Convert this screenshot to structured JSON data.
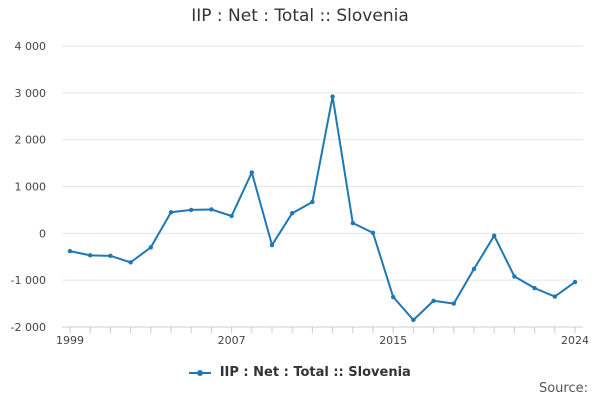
{
  "chart_data": {
    "type": "line",
    "title": "IIP : Net : Total :: Slovenia",
    "xlabel": "",
    "ylabel": "",
    "x": [
      1999,
      2000,
      2001,
      2002,
      2003,
      2004,
      2005,
      2006,
      2007,
      2008,
      2009,
      2010,
      2011,
      2012,
      2013,
      2014,
      2015,
      2016,
      2017,
      2018,
      2019,
      2020,
      2021,
      2022,
      2023,
      2024
    ],
    "series": [
      {
        "name": "IIP : Net : Total :: Slovenia",
        "color": "#1f77b4",
        "values": [
          -380,
          -470,
          -480,
          -620,
          -300,
          450,
          500,
          510,
          370,
          1300,
          -250,
          430,
          670,
          2920,
          220,
          10,
          -1360,
          -1850,
          -1440,
          -1500,
          -760,
          -50,
          -920,
          -1170,
          -1350,
          -1040
        ]
      }
    ],
    "ylim": [
      -2000,
      4000
    ],
    "yticks": [
      -2000,
      -1000,
      0,
      1000,
      2000,
      3000,
      4000
    ],
    "ytick_labels": [
      "-2 000",
      "-1 000",
      "0",
      "1 000",
      "2 000",
      "3 000",
      "4 000"
    ],
    "xtick_labels": [
      "1999",
      "2007",
      "2015",
      "2024"
    ],
    "xtick_label_values": [
      1999,
      2007,
      2015,
      2024
    ],
    "grid": true,
    "legend": "bottom",
    "source_label": "Source:"
  }
}
